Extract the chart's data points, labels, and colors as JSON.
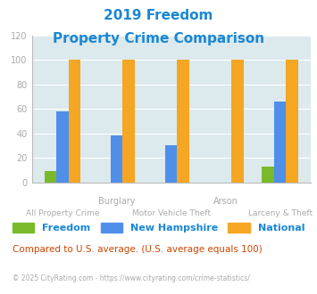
{
  "title_line1": "2019 Freedom",
  "title_line2": "Property Crime Comparison",
  "categories": [
    "All Property Crime",
    "Burglary",
    "Motor Vehicle Theft",
    "Arson",
    "Larceny & Theft"
  ],
  "freedom": [
    9,
    0,
    0,
    0,
    13
  ],
  "new_hampshire": [
    58,
    38,
    30,
    0,
    66
  ],
  "national": [
    100,
    100,
    100,
    100,
    100
  ],
  "freedom_color": "#7aba2a",
  "nh_color": "#4f8fea",
  "national_color": "#f5a623",
  "bg_color": "#dce9ed",
  "ylim": [
    0,
    120
  ],
  "yticks": [
    0,
    20,
    40,
    60,
    80,
    100,
    120
  ],
  "bar_width": 0.22,
  "footnote": "Compared to U.S. average. (U.S. average equals 100)",
  "copyright": "© 2025 CityRating.com - https://www.cityrating.com/crime-statistics/",
  "title_color": "#1a87d4",
  "axis_label_color": "#aaaaaa",
  "footnote_color": "#cc4400",
  "copyright_color": "#aaaaaa",
  "legend_labels": [
    "Freedom",
    "New Hampshire",
    "National"
  ]
}
